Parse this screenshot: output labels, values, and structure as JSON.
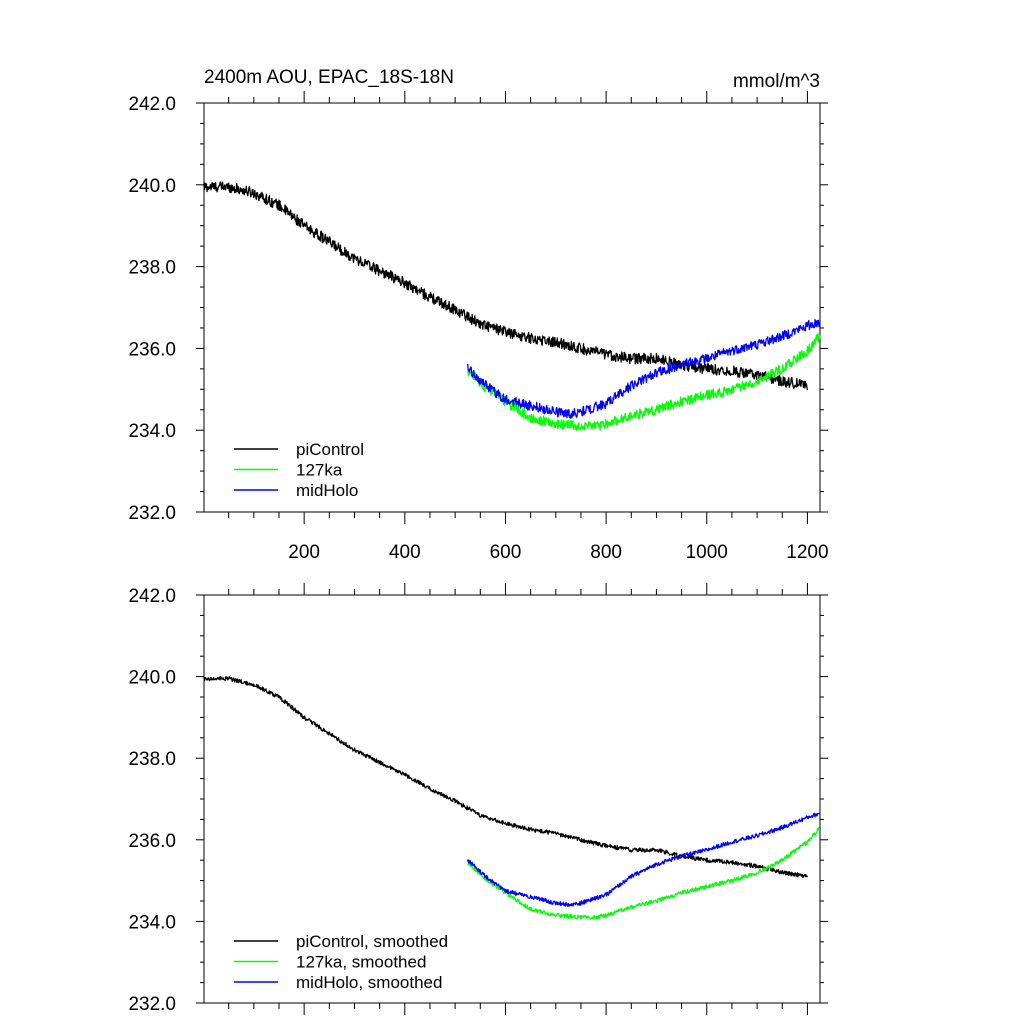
{
  "header": {
    "title": "2400m AOU, EPAC_18S-18N",
    "units": "mmol/m^3"
  },
  "chart_data": [
    {
      "type": "line",
      "panel": "top",
      "xlim": [
        1,
        1225
      ],
      "ylim": [
        232,
        242
      ],
      "yticks": [
        232,
        234,
        236,
        238,
        240,
        242
      ],
      "ytick_labels": [
        "232.0",
        "234.0",
        "236.0",
        "238.0",
        "240.0",
        "242.0"
      ],
      "xticks": [
        200,
        400,
        600,
        800,
        1000,
        1200
      ],
      "xtick_labels": [
        "200",
        "400",
        "600",
        "800",
        "1000",
        "1200"
      ],
      "legend_position": "bottom-left",
      "series": [
        {
          "name": "piControl",
          "label": "piControl",
          "color": "#000000",
          "noise": 0.13,
          "x": [
            1,
            50,
            100,
            150,
            200,
            250,
            300,
            350,
            400,
            450,
            500,
            550,
            600,
            650,
            700,
            750,
            800,
            850,
            900,
            950,
            1000,
            1050,
            1100,
            1150,
            1200
          ],
          "y": [
            239.95,
            239.95,
            239.8,
            239.5,
            239.0,
            238.6,
            238.2,
            237.9,
            237.6,
            237.25,
            236.95,
            236.6,
            236.4,
            236.25,
            236.15,
            236.0,
            235.85,
            235.75,
            235.75,
            235.6,
            235.5,
            235.45,
            235.35,
            235.2,
            235.1
          ]
        },
        {
          "name": "127ka",
          "label": "127ka",
          "color": "#00ff00",
          "noise": 0.12,
          "x": [
            525,
            560,
            600,
            650,
            700,
            750,
            780,
            800,
            850,
            900,
            950,
            1000,
            1050,
            1100,
            1150,
            1200,
            1225
          ],
          "y": [
            235.45,
            235.05,
            234.7,
            234.3,
            234.15,
            234.1,
            234.1,
            234.15,
            234.35,
            234.5,
            234.7,
            234.85,
            235.0,
            235.2,
            235.5,
            235.95,
            236.3
          ]
        },
        {
          "name": "midHolo",
          "label": "midHolo",
          "color": "#0000ff",
          "noise": 0.12,
          "x": [
            525,
            560,
            600,
            650,
            700,
            730,
            750,
            800,
            850,
            900,
            950,
            1000,
            1050,
            1100,
            1150,
            1200,
            1225
          ],
          "y": [
            235.5,
            235.1,
            234.75,
            234.6,
            234.45,
            234.4,
            234.45,
            234.65,
            235.1,
            235.4,
            235.6,
            235.75,
            235.95,
            236.1,
            236.3,
            236.55,
            236.65
          ]
        }
      ]
    },
    {
      "type": "line",
      "panel": "bottom",
      "xlim": [
        1,
        1225
      ],
      "ylim": [
        232,
        242
      ],
      "yticks": [
        232,
        234,
        236,
        238,
        240,
        242
      ],
      "ytick_labels": [
        "232.0",
        "234.0",
        "236.0",
        "238.0",
        "240.0",
        "242.0"
      ],
      "xticks": [
        200,
        400,
        600,
        800,
        1000,
        1200
      ],
      "xtick_labels": [],
      "legend_position": "bottom-left",
      "series": [
        {
          "name": "piControl",
          "label": "piControl, smoothed",
          "color": "#000000",
          "noise": 0.05,
          "x": [
            1,
            50,
            100,
            150,
            200,
            250,
            300,
            350,
            400,
            450,
            500,
            550,
            600,
            650,
            700,
            750,
            800,
            850,
            900,
            950,
            1000,
            1050,
            1100,
            1150,
            1200
          ],
          "y": [
            239.95,
            239.95,
            239.8,
            239.5,
            239.0,
            238.6,
            238.2,
            237.9,
            237.6,
            237.25,
            236.95,
            236.6,
            236.4,
            236.25,
            236.15,
            236.0,
            235.85,
            235.75,
            235.75,
            235.6,
            235.5,
            235.45,
            235.35,
            235.2,
            235.1
          ]
        },
        {
          "name": "127ka",
          "label": "127ka, smoothed",
          "color": "#00ff00",
          "noise": 0.05,
          "x": [
            525,
            560,
            600,
            650,
            700,
            750,
            780,
            800,
            850,
            900,
            950,
            1000,
            1050,
            1100,
            1150,
            1200,
            1225
          ],
          "y": [
            235.45,
            235.05,
            234.7,
            234.3,
            234.15,
            234.1,
            234.1,
            234.15,
            234.35,
            234.5,
            234.7,
            234.85,
            235.0,
            235.2,
            235.5,
            235.95,
            236.3
          ]
        },
        {
          "name": "midHolo",
          "label": "midHolo, smoothed",
          "color": "#0000ff",
          "noise": 0.05,
          "x": [
            525,
            560,
            600,
            650,
            700,
            730,
            750,
            800,
            850,
            900,
            950,
            1000,
            1050,
            1100,
            1150,
            1200,
            1225
          ],
          "y": [
            235.5,
            235.1,
            234.75,
            234.6,
            234.45,
            234.4,
            234.45,
            234.65,
            235.1,
            235.4,
            235.6,
            235.75,
            235.95,
            236.1,
            236.3,
            236.55,
            236.65
          ]
        }
      ]
    }
  ]
}
